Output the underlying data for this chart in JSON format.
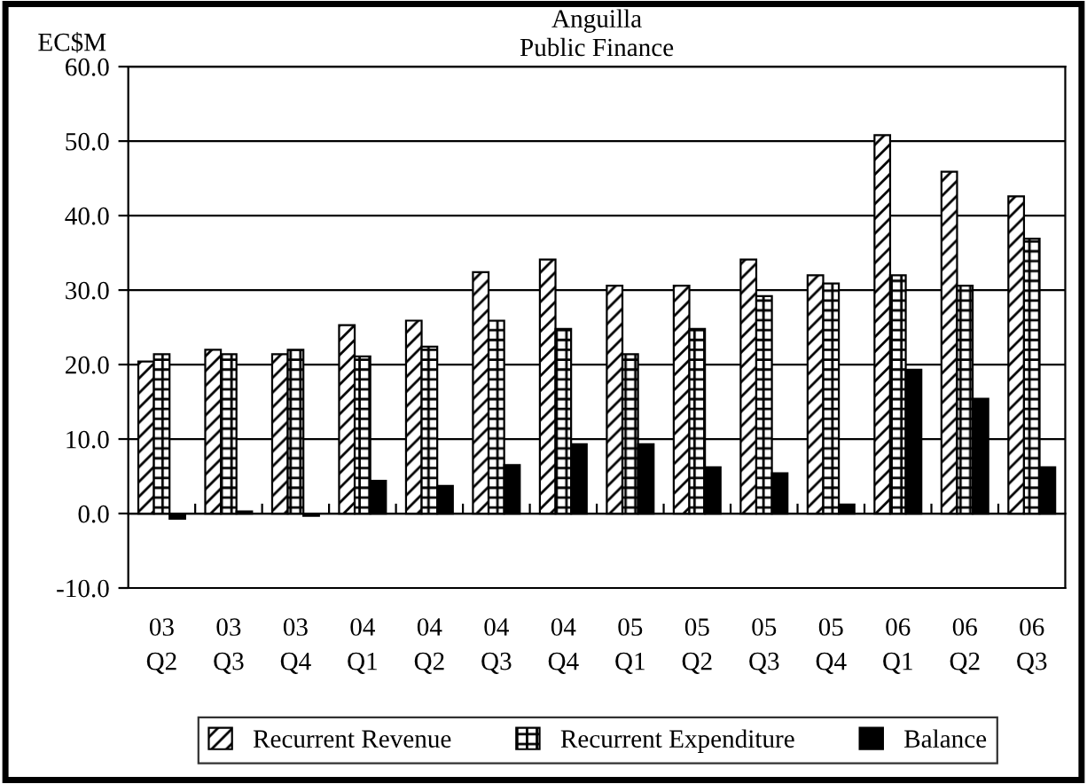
{
  "chart_data": {
    "type": "bar",
    "title": "Anguilla",
    "subtitle": "Public Finance",
    "ylabel": "EC$M",
    "categories": [
      "03\nQ2",
      "03\nQ3",
      "03\nQ4",
      "04\nQ1",
      "04\nQ2",
      "04\nQ3",
      "04\nQ4",
      "05\nQ1",
      "05\nQ2",
      "05\nQ3",
      "05\nQ4",
      "06\nQ1",
      "06\nQ2",
      "06\nQ3"
    ],
    "series": [
      {
        "name": "Recurrent Revenue",
        "color": "#000000",
        "values": [
          20.4,
          22.0,
          21.4,
          25.3,
          25.9,
          32.4,
          34.1,
          30.6,
          30.6,
          34.1,
          32.0,
          50.8,
          45.9,
          42.6
        ]
      },
      {
        "name": "Recurrent Expenditure",
        "color": "#000000",
        "values": [
          21.4,
          21.4,
          22.0,
          21.1,
          22.4,
          25.9,
          24.8,
          21.4,
          24.8,
          29.2,
          30.9,
          32.0,
          30.6,
          36.9
        ]
      },
      {
        "name": "Balance",
        "color": "#000000",
        "values": [
          -0.7,
          0.3,
          -0.3,
          4.4,
          3.7,
          6.5,
          9.3,
          9.3,
          6.2,
          5.4,
          1.2,
          19.3,
          15.4,
          6.2
        ]
      }
    ],
    "ylim": [
      -10,
      60
    ],
    "yticks": [
      {
        "value": -10,
        "label": "-10.0"
      },
      {
        "value": 0,
        "label": "0.0"
      },
      {
        "value": 10,
        "label": "10.0"
      },
      {
        "value": 20,
        "label": "20.0"
      },
      {
        "value": 30,
        "label": "30.0"
      },
      {
        "value": 40,
        "label": "40.0"
      },
      {
        "value": 50,
        "label": "50.0"
      },
      {
        "value": 60,
        "label": "60.0"
      }
    ],
    "grid": "y",
    "legend": "bottom"
  }
}
